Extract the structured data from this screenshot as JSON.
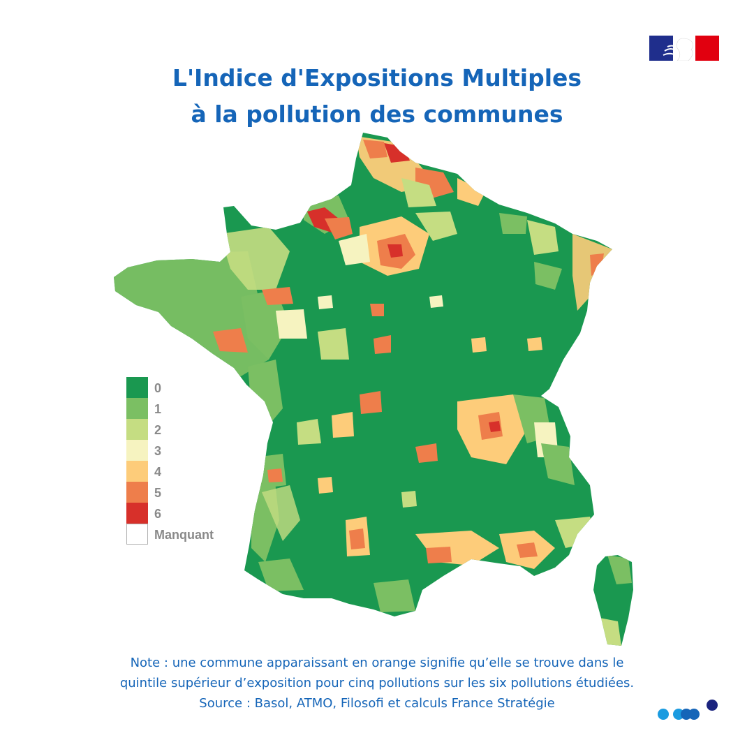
{
  "header": {
    "title_line1": "L'Indice d'Expositions Multiples",
    "title_line2": "à la pollution des communes",
    "logo": "republique-francaise-flag-logo"
  },
  "legend": {
    "items": [
      {
        "label": "0",
        "color": "#1a9850"
      },
      {
        "label": "1",
        "color": "#7bbf63"
      },
      {
        "label": "2",
        "color": "#c5dd82"
      },
      {
        "label": "3",
        "color": "#f6f3c0"
      },
      {
        "label": "4",
        "color": "#fdcc7a"
      },
      {
        "label": "5",
        "color": "#ee7e4b"
      },
      {
        "label": "6",
        "color": "#d7302a"
      },
      {
        "label": "Manquant",
        "color": "#ffffff"
      }
    ]
  },
  "map": {
    "subject": "France communes choropleth",
    "base_color": "#1a9850"
  },
  "footer": {
    "note_line1": "Note : une commune apparaissant en orange signifie qu’elle se trouve dans le",
    "note_line2": "quintile supérieur d’exposition pour cinq pollutions sur les six pollutions étudiées.",
    "source": "Source : Basol, ATMO, Filosofi et calculs France Stratégie"
  },
  "colors": {
    "title": "#1565b8",
    "legend_text": "#8a8a8a",
    "dot_light": "#1a9be0",
    "dot_mid": "#1565b8",
    "dot_dark": "#1a237e"
  }
}
